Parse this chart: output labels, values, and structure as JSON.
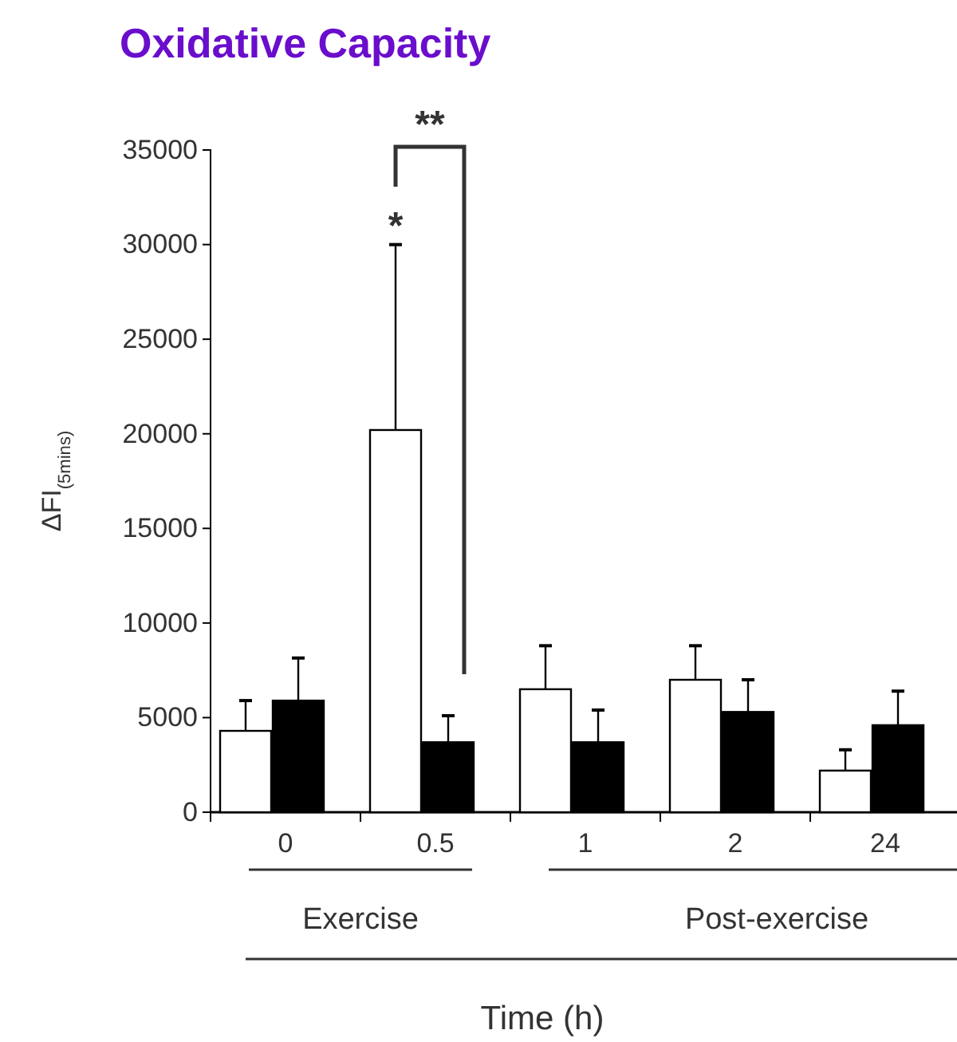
{
  "chart_data": {
    "type": "bar",
    "title": "Oxidative Capacity",
    "xlabel": "Time (h)",
    "ylabel": "ΔFI$_{(5mins)}$",
    "categories": [
      "0",
      "0.5",
      "1",
      "2",
      "24"
    ],
    "series": [
      {
        "color": "#ffffff",
        "values": [
          4300,
          20200,
          6500,
          7000,
          2200
        ],
        "errors": [
          [
            4300,
            5900
          ],
          [
            20200,
            30000
          ],
          [
            6500,
            8800
          ],
          [
            7000,
            8800
          ],
          [
            2200,
            3300
          ]
        ]
      },
      {
        "color": "#000000",
        "values": [
          5900,
          3700,
          3700,
          5300,
          4600
        ],
        "errors": [
          [
            5900,
            8150
          ],
          [
            3700,
            5100
          ],
          [
            3700,
            5400
          ],
          [
            5300,
            7000
          ],
          [
            4600,
            6400
          ]
        ]
      }
    ],
    "ylim": [
      0,
      35000
    ],
    "yticks": [
      0,
      5000,
      10000,
      15000,
      20000,
      25000,
      30000,
      35000
    ],
    "grid": false,
    "annotations": [
      "*",
      "**",
      "Exercise",
      "Post-exercise"
    ]
  }
}
